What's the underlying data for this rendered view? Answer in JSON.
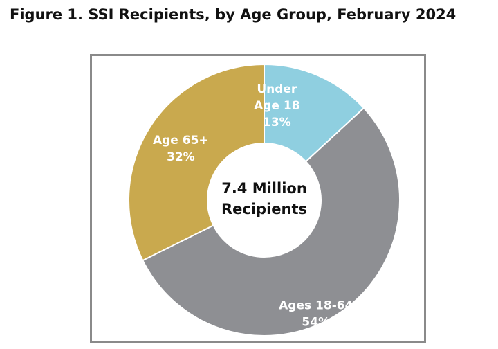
{
  "figure": {
    "title": "Figure 1. SSI Recipients, by Age Group, February 2024"
  },
  "chart_data": {
    "type": "pie",
    "subtype": "donut",
    "title": "Figure 1. SSI Recipients, by Age Group, February 2024",
    "center_label": [
      "7.4 Million",
      "Recipients"
    ],
    "slices": [
      {
        "label": [
          "Under",
          "Age 18",
          "13%"
        ],
        "category": "Under Age 18",
        "value": 13,
        "color": "#8fcfe0"
      },
      {
        "label": [
          "Ages 18-64",
          "54%"
        ],
        "category": "Ages 18-64",
        "value": 54,
        "color": "#8e8f93"
      },
      {
        "label": [
          "Age 65+",
          "32%"
        ],
        "category": "Age 65+",
        "value": 32,
        "color": "#c9a94e"
      }
    ]
  }
}
